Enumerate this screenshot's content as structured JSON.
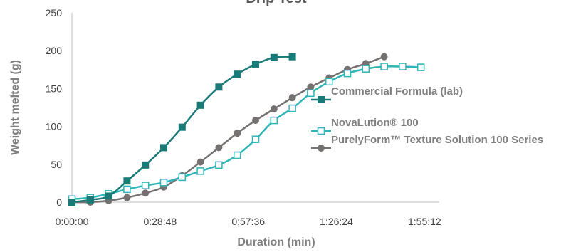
{
  "chart_data": {
    "type": "line",
    "title": "Drip Test",
    "xlabel": "Duration (min)",
    "ylabel": "Weight melted (g)",
    "x_range_seconds": [
      0,
      7200
    ],
    "x_ticks": [
      {
        "seconds": 0,
        "label": "0:00:00"
      },
      {
        "seconds": 1728,
        "label": "0:28:48"
      },
      {
        "seconds": 3456,
        "label": "0:57:36"
      },
      {
        "seconds": 5184,
        "label": "1:26:24"
      },
      {
        "seconds": 6912,
        "label": "1:55:12"
      }
    ],
    "ylim": [
      0,
      250
    ],
    "y_ticks": [
      0,
      50,
      100,
      150,
      200,
      250
    ],
    "grid": false,
    "legend_position": "right",
    "series": [
      {
        "name": "Commercial Formula (lab)",
        "color": "#1a7a78",
        "marker": "filled-square",
        "x_seconds": [
          0,
          360,
          720,
          1080,
          1440,
          1800,
          2160,
          2520,
          2880,
          3240,
          3600,
          3960,
          4320
        ],
        "y": [
          0,
          3,
          8,
          28,
          49,
          72,
          99,
          128,
          152,
          169,
          182,
          191,
          192
        ]
      },
      {
        "name": "NovaLution® 100",
        "color": "#2fb5b7",
        "marker": "open-square",
        "x_seconds": [
          0,
          360,
          720,
          1080,
          1440,
          1800,
          2160,
          2520,
          2880,
          3240,
          3600,
          3960,
          4320,
          4680,
          5040,
          5400,
          5760,
          6120,
          6480,
          6840
        ],
        "y": [
          4,
          6,
          11,
          17,
          22,
          26,
          33,
          41,
          49,
          62,
          83,
          108,
          124,
          144,
          159,
          170,
          176,
          179,
          179,
          178
        ]
      },
      {
        "name": "PurelyForm™ Texture Solution 100 Series",
        "color": "#767171",
        "marker": "filled-circle",
        "x_seconds": [
          0,
          360,
          720,
          1080,
          1440,
          1800,
          2160,
          2520,
          2880,
          3240,
          3600,
          3960,
          4320,
          4680,
          5040,
          5400,
          5760,
          6120
        ],
        "y": [
          0,
          0,
          2,
          6,
          12,
          20,
          35,
          53,
          72,
          91,
          108,
          123,
          138,
          152,
          164,
          175,
          183,
          192
        ]
      }
    ]
  }
}
